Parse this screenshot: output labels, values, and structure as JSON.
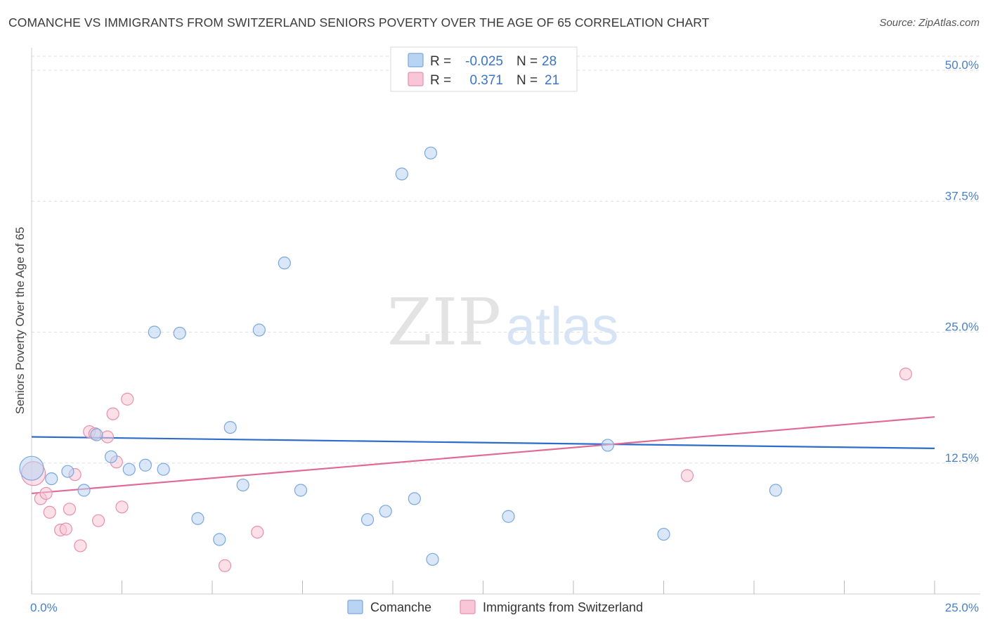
{
  "title": "COMANCHE VS IMMIGRANTS FROM SWITZERLAND SENIORS POVERTY OVER THE AGE OF 65 CORRELATION CHART",
  "source": "Source: ZipAtlas.com",
  "watermark": {
    "zip": "ZIP",
    "atlas": "atlas"
  },
  "colors": {
    "comanche_fill": "#b9d3f2",
    "comanche_stroke": "#7aa7de",
    "comanche_line": "#2d6cc9",
    "swiss_fill": "#f8c6d6",
    "swiss_stroke": "#e78fae",
    "swiss_line": "#e06a95",
    "tick_label": "#4a7fc8",
    "grid": "#dddddd"
  },
  "legend": {
    "rows": [
      {
        "r_label": "R =",
        "r_value": "-0.025",
        "n_label": "N =",
        "n_value": "28"
      },
      {
        "r_label": "R =",
        "r_value": "0.371",
        "n_label": "N =",
        "n_value": "21"
      }
    ]
  },
  "chart_data": {
    "type": "scatter",
    "title": "COMANCHE VS IMMIGRANTS FROM SWITZERLAND SENIORS POVERTY OVER THE AGE OF 65 CORRELATION CHART",
    "xlabel": "",
    "ylabel": "Seniors Poverty Over the Age of 65",
    "xlim": [
      0,
      25
    ],
    "ylim": [
      0,
      50
    ],
    "x_tick_labels": [
      "0.0%",
      "25.0%"
    ],
    "y_ticks": [
      12.5,
      25.0,
      37.5,
      50.0
    ],
    "y_tick_labels": [
      "12.5%",
      "25.0%",
      "37.5%",
      "50.0%"
    ],
    "grid": true,
    "legend_position": "top-center",
    "series": [
      {
        "name": "Comanche",
        "r": -0.025,
        "n": 28,
        "trend": {
          "y_at_x0": 15.0,
          "y_at_x25": 13.9
        },
        "points": [
          [
            0.0,
            12.0
          ],
          [
            0.55,
            11.0
          ],
          [
            1.0,
            11.7
          ],
          [
            1.45,
            9.9
          ],
          [
            1.8,
            15.2
          ],
          [
            2.2,
            13.1
          ],
          [
            2.7,
            11.9
          ],
          [
            3.15,
            12.3
          ],
          [
            3.4,
            25.0
          ],
          [
            3.65,
            11.9
          ],
          [
            4.1,
            24.9
          ],
          [
            4.6,
            7.2
          ],
          [
            5.2,
            5.2
          ],
          [
            5.5,
            15.9
          ],
          [
            5.85,
            10.4
          ],
          [
            6.3,
            25.2
          ],
          [
            7.0,
            31.6
          ],
          [
            7.45,
            9.9
          ],
          [
            9.3,
            7.1
          ],
          [
            9.8,
            7.9
          ],
          [
            10.25,
            40.1
          ],
          [
            10.6,
            9.1
          ],
          [
            11.05,
            42.1
          ],
          [
            11.1,
            3.3
          ],
          [
            13.2,
            7.4
          ],
          [
            15.95,
            14.2
          ],
          [
            17.5,
            5.7
          ],
          [
            20.6,
            9.9
          ]
        ]
      },
      {
        "name": "Immigrants from Switzerland",
        "r": 0.371,
        "n": 21,
        "trend": {
          "y_at_x0": 9.6,
          "y_at_x25": 16.9
        },
        "points": [
          [
            0.05,
            11.5
          ],
          [
            0.25,
            9.1
          ],
          [
            0.4,
            9.6
          ],
          [
            0.5,
            7.8
          ],
          [
            0.8,
            6.1
          ],
          [
            0.95,
            6.2
          ],
          [
            1.05,
            8.1
          ],
          [
            1.2,
            11.4
          ],
          [
            1.35,
            4.6
          ],
          [
            1.6,
            15.5
          ],
          [
            1.75,
            15.3
          ],
          [
            1.85,
            7.0
          ],
          [
            2.1,
            15.0
          ],
          [
            2.25,
            17.2
          ],
          [
            2.35,
            12.6
          ],
          [
            2.5,
            8.3
          ],
          [
            2.65,
            18.6
          ],
          [
            5.35,
            2.7
          ],
          [
            6.25,
            5.9
          ],
          [
            18.15,
            11.3
          ],
          [
            24.2,
            21.0
          ]
        ]
      }
    ]
  }
}
